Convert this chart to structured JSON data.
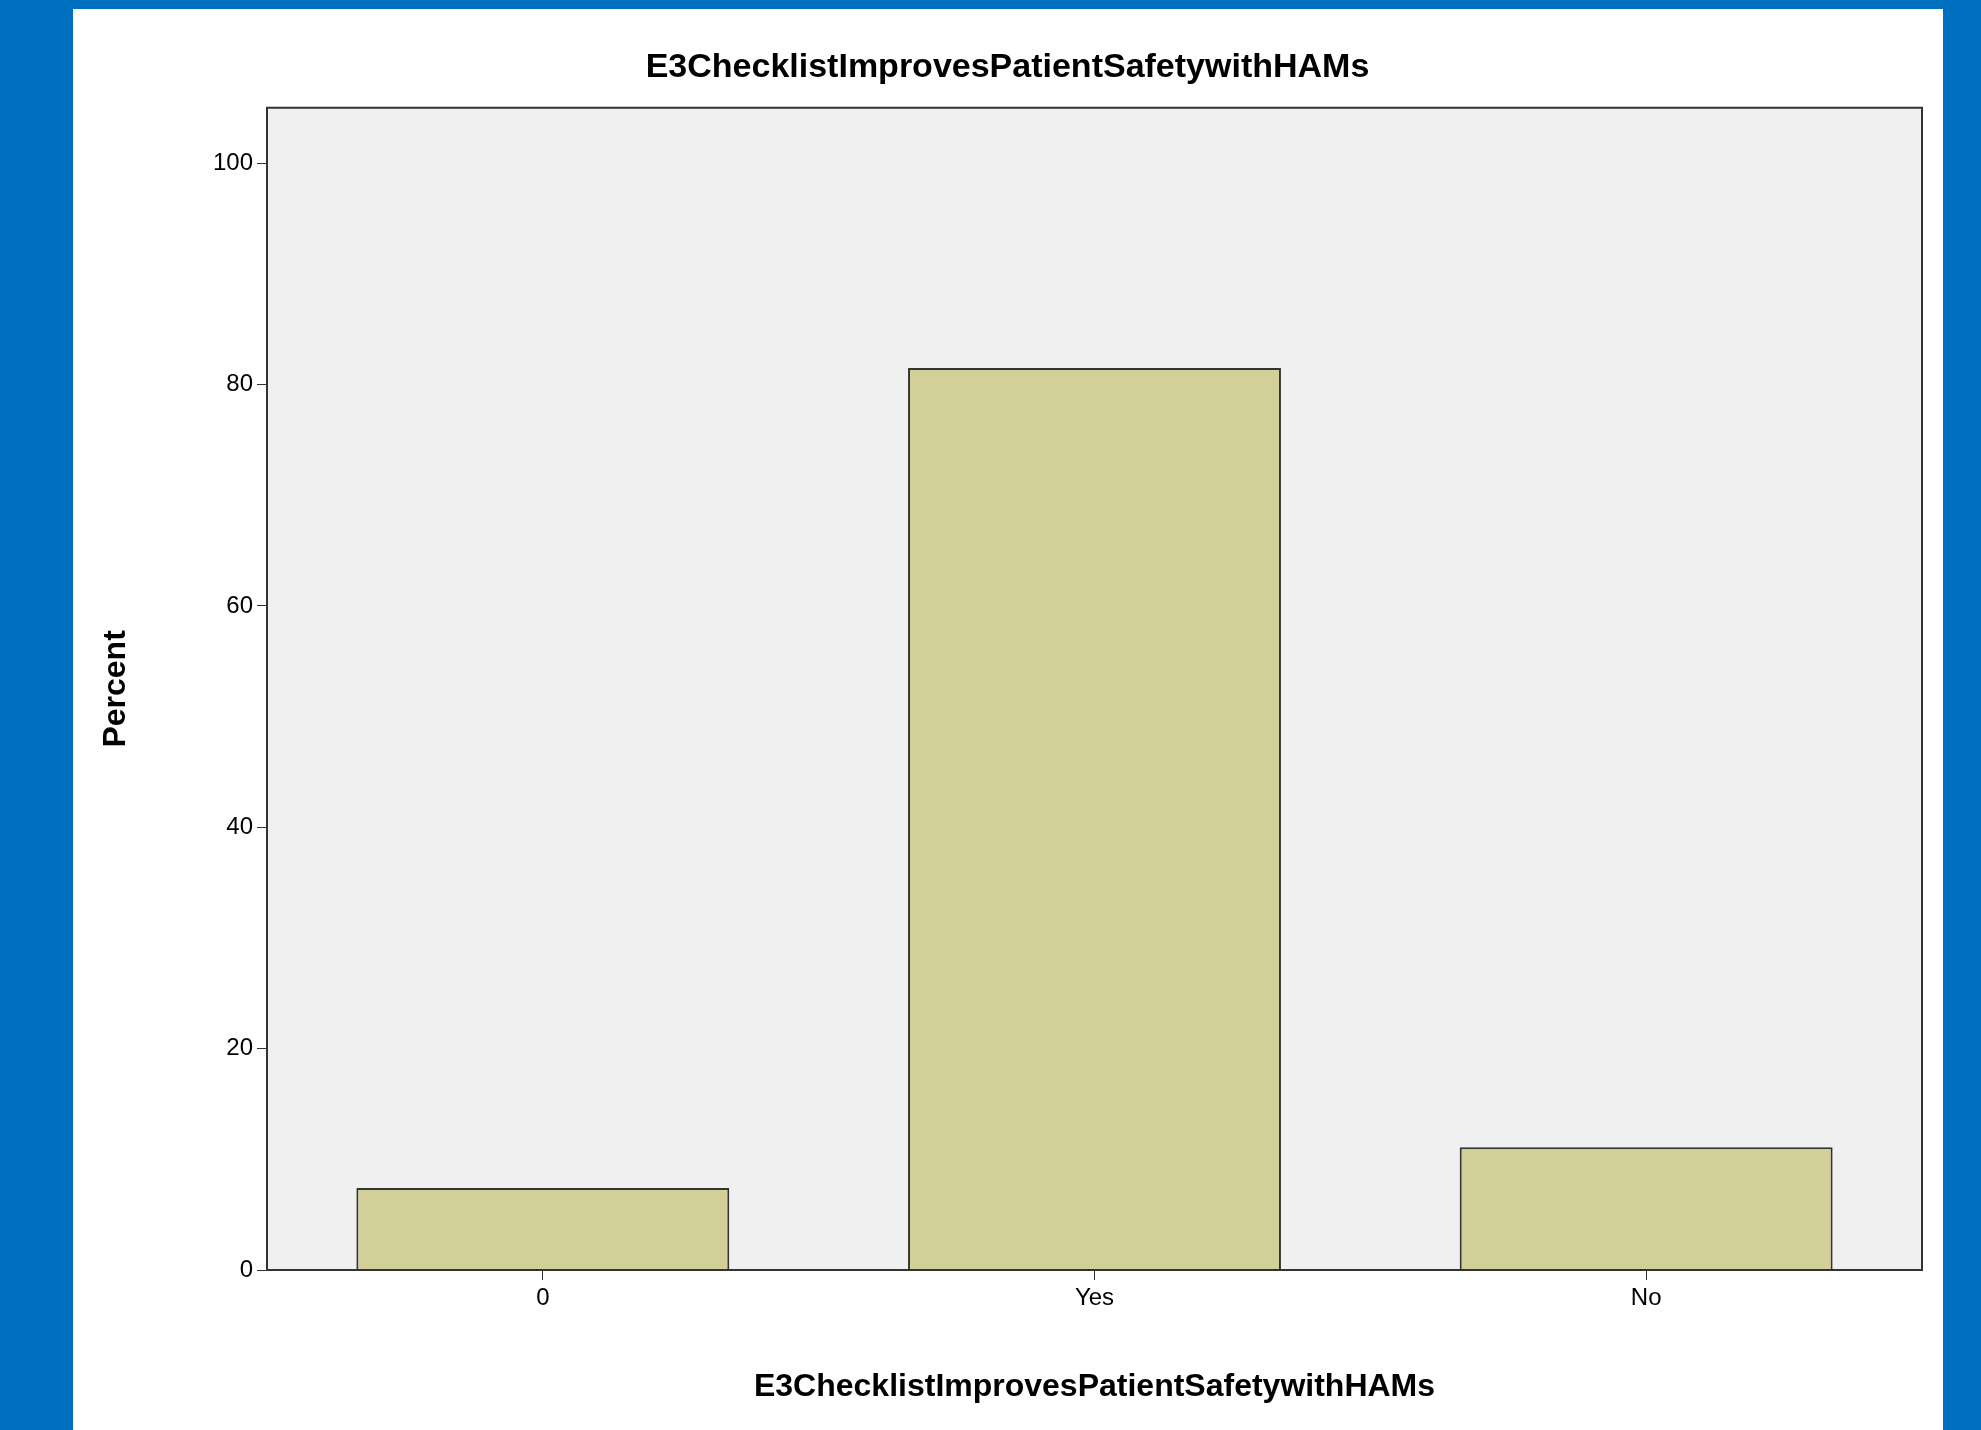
{
  "chart_data": {
    "type": "bar",
    "title": "E3ChecklistImprovesPatientSafetywithHAMs",
    "xlabel": "E3ChecklistImprovesPatientSafetywithHAMs",
    "ylabel": "Percent",
    "categories": [
      "0",
      "Yes",
      "No"
    ],
    "values": [
      7.4,
      81.5,
      11.1
    ],
    "color": "#d3cf99",
    "ylim": [
      0,
      105
    ],
    "yticks": [
      0,
      20,
      40,
      60,
      80,
      100
    ],
    "grid": false,
    "legend": false
  }
}
